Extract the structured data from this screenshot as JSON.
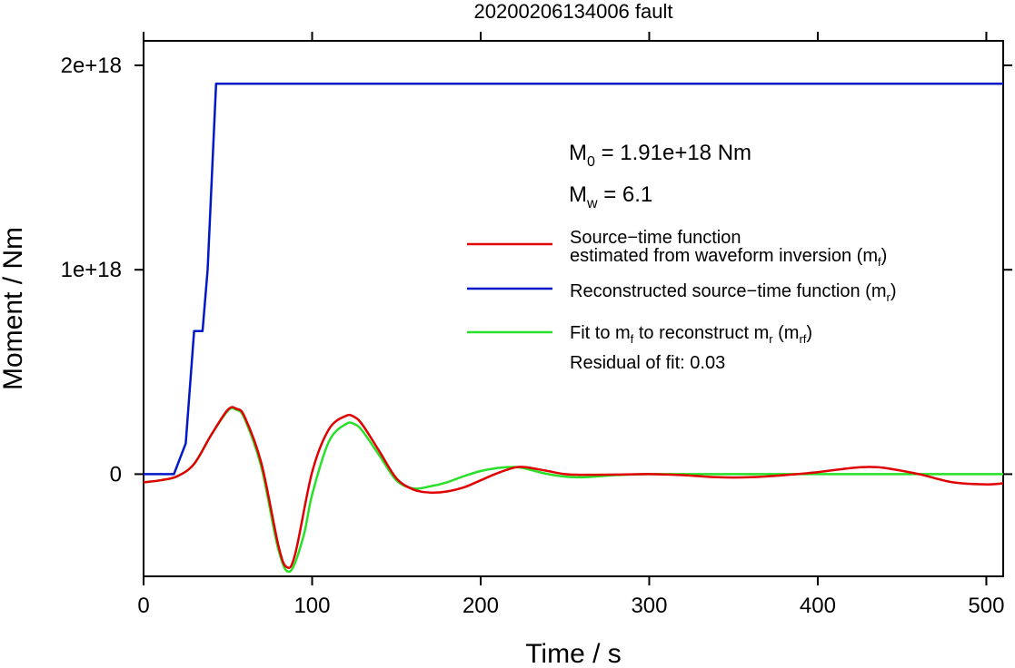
{
  "chart_data": {
    "type": "line",
    "title": "20200206134006 fault",
    "xlabel": "Time / s",
    "ylabel": "Moment / Nm",
    "xlim": [
      0,
      510
    ],
    "ylim": [
      -5e+17,
      2.12e+18
    ],
    "x_ticks": [
      0,
      100,
      200,
      300,
      400,
      500
    ],
    "x_tick_labels": [
      "0",
      "100",
      "200",
      "300",
      "400",
      "500"
    ],
    "y_ticks": [
      0,
      1e+18,
      2e+18
    ],
    "y_tick_labels": [
      "0",
      "1e+18",
      "2e+18"
    ],
    "grid": false,
    "annotations": {
      "m0_label": "M",
      "m0_sub": "0",
      "m0_value": " = 1.91e+18 Nm",
      "mw_label": "M",
      "mw_sub": "w",
      "mw_value": " = 6.1",
      "residual": "Residual of fit: 0.03"
    },
    "legend": {
      "placement": "right",
      "entries": [
        {
          "series": 0,
          "line1": "Source−time function",
          "line2_prefix": "estimated from waveform inversion (m",
          "line2_sub": "f",
          "line2_suffix": ")"
        },
        {
          "series": 1,
          "line1_prefix": "Reconstructed source−time function (m",
          "line1_sub": "r",
          "line1_suffix": ")"
        },
        {
          "series": 2,
          "p1": "Fit to m",
          "s1": "f",
          "p2": " to reconstruct m",
          "s2": "r",
          "p3": " (m",
          "s3": "rf",
          "p4": ")"
        }
      ]
    },
    "series": [
      {
        "color": "#e00000",
        "x": [
          0,
          10,
          20,
          30,
          40,
          50,
          55,
          60,
          70,
          80,
          85,
          90,
          100,
          110,
          120,
          125,
          130,
          140,
          150,
          160,
          170,
          180,
          190,
          200,
          210,
          220,
          225,
          230,
          240,
          250,
          260,
          280,
          300,
          320,
          340,
          360,
          380,
          400,
          420,
          430,
          440,
          460,
          480,
          500,
          510
        ],
        "y": [
          -4e+16,
          -3e+16,
          -1e+16,
          5e+16,
          1.9e+17,
          3.15e+17,
          3.2e+17,
          2.8e+17,
          5e+16,
          -3.5e+17,
          -4.55e+17,
          -3.9e+17,
          1e+16,
          2.2e+17,
          2.85e+17,
          2.8e+17,
          2.4e+17,
          1.1e+17,
          -2e+16,
          -7.5e+16,
          -9e+16,
          -8.5e+16,
          -6.5e+16,
          -3e+16,
          5000000000000000.0,
          3.2e+16,
          3.5e+16,
          3e+16,
          1.5e+16,
          0,
          -3000000000000000.0,
          -2000000000000000.0,
          0,
          -5000000000000000.0,
          -1.5e+16,
          -1.5e+16,
          -5000000000000000.0,
          1e+16,
          3e+16,
          3.5e+16,
          3e+16,
          0,
          -4e+16,
          -5e+16,
          -4.5e+16
        ]
      },
      {
        "color": "#0018c8",
        "x": [
          0,
          18,
          25,
          30,
          35,
          38,
          43,
          60,
          100,
          200,
          300,
          400,
          510
        ],
        "y": [
          0,
          0,
          1.5e+17,
          7e+17,
          7e+17,
          1e+18,
          1.91e+18,
          1.91e+18,
          1.91e+18,
          1.91e+18,
          1.91e+18,
          1.91e+18,
          1.91e+18
        ]
      },
      {
        "color": "#28e028",
        "x": [
          0,
          10,
          20,
          30,
          40,
          50,
          55,
          60,
          70,
          80,
          87,
          95,
          100,
          110,
          120,
          125,
          130,
          140,
          150,
          160,
          170,
          180,
          190,
          200,
          210,
          220,
          225,
          230,
          240,
          250,
          262,
          280,
          300,
          320,
          340,
          360,
          380,
          400,
          420,
          440,
          460,
          480,
          500,
          510
        ],
        "y": [
          -4e+16,
          -3e+16,
          -1e+16,
          5e+16,
          1.9e+17,
          3.1e+17,
          3.15e+17,
          2.7e+17,
          3e+16,
          -3.7e+17,
          -4.75e+17,
          -3e+17,
          -1e+17,
          1.6e+17,
          2.45e+17,
          2.45e+17,
          2.1e+17,
          9e+16,
          -3e+16,
          -7e+16,
          -6e+16,
          -4e+16,
          -1e+16,
          1.5e+16,
          3e+16,
          3.5e+16,
          3e+16,
          2e+16,
          0,
          -1.2e+16,
          -1.5e+16,
          -5000000000000000.0,
          0,
          0,
          0,
          0,
          0,
          0,
          0,
          0,
          0,
          0,
          0,
          0
        ]
      }
    ]
  }
}
